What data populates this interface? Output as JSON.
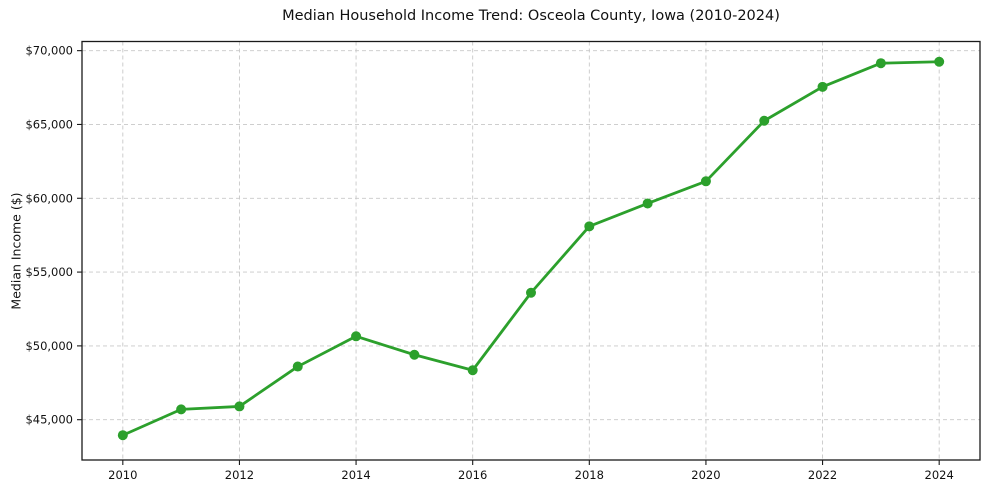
{
  "chart_data": {
    "type": "line",
    "title": "Median Household Income Trend: Osceola County, Iowa (2010-2024)",
    "xlabel": "",
    "ylabel": "Median Income ($)",
    "x": [
      2010,
      2011,
      2012,
      2013,
      2014,
      2015,
      2016,
      2017,
      2018,
      2019,
      2020,
      2021,
      2022,
      2023,
      2024
    ],
    "values": [
      43950,
      45700,
      45900,
      48600,
      50650,
      49400,
      48350,
      53600,
      58100,
      59650,
      61150,
      65250,
      67550,
      69150,
      69250
    ],
    "xlim": [
      2009.3,
      2024.7
    ],
    "ylim": [
      42270,
      70620
    ],
    "x_ticks": [
      2010,
      2012,
      2014,
      2016,
      2018,
      2020,
      2022,
      2024
    ],
    "x_tick_labels": [
      "2010",
      "2012",
      "2014",
      "2016",
      "2018",
      "2020",
      "2022",
      "2024"
    ],
    "y_ticks": [
      45000,
      50000,
      55000,
      60000,
      65000,
      70000
    ],
    "y_tick_labels": [
      "$45,000",
      "$50,000",
      "$55,000",
      "$60,000",
      "$65,000",
      "$70,000"
    ],
    "grid": true,
    "legend": "none",
    "marker": "circle",
    "colors": {
      "line": "#2ca02c",
      "grid": "#c8c8c8",
      "axis": "#1a1a1a",
      "text": "#111111",
      "background": "#ffffff"
    }
  }
}
